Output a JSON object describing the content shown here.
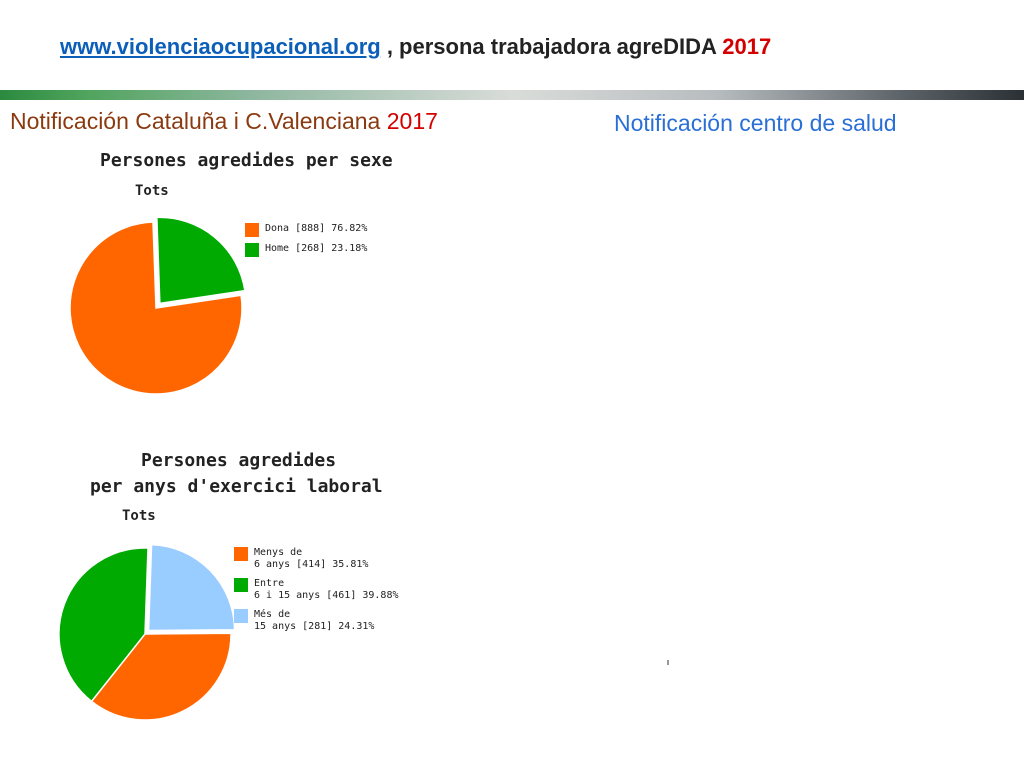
{
  "header": {
    "link": "www.violenciaocupacional.org",
    "text": ", persona trabajadora agreDIDA",
    "year": "2017"
  },
  "subtitles": {
    "left": "Notificación Cataluña i C.Valenciana",
    "left_year": "2017",
    "right": "Notificación centro de salud"
  },
  "colors": {
    "orange": "#ff6600",
    "green": "#00aa00",
    "lightblue": "#99ccff"
  },
  "chart_data": [
    {
      "type": "pie",
      "title": "Persones agredides per sexe",
      "subtitle": "Tots",
      "slices": [
        {
          "label": "Dona [888] 76.82%",
          "name": "Dona",
          "count": 888,
          "value": 76.82,
          "color": "#ff6600"
        },
        {
          "label": "Home [268] 23.18%",
          "name": "Home",
          "count": 268,
          "value": 23.18,
          "color": "#00aa00"
        }
      ]
    },
    {
      "type": "pie",
      "title_line1": "Persones agredides",
      "title_line2": "per anys d'exercici laboral",
      "subtitle": "Tots",
      "slices": [
        {
          "label": "Menys de\n6 anys [414] 35.81%",
          "name": "Menys de 6 anys",
          "count": 414,
          "value": 35.81,
          "color": "#ff6600"
        },
        {
          "label": "Entre\n6 i 15 anys [461] 39.88%",
          "name": "Entre 6 i 15 anys",
          "count": 461,
          "value": 39.88,
          "color": "#00aa00"
        },
        {
          "label": "Més de\n15 anys [281] 24.31%",
          "name": "Més de 15 anys",
          "count": 281,
          "value": 24.31,
          "color": "#99ccff"
        }
      ]
    }
  ]
}
